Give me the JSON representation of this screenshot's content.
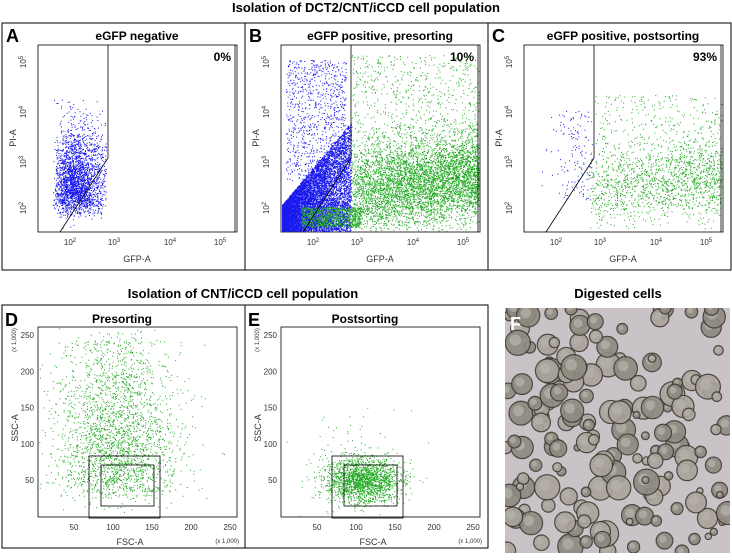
{
  "top_title": "Isolation of DCT2/CNT/iCCD cell population",
  "top_panels": [
    {
      "letter": "A",
      "title": "eGFP negative",
      "percent": "0%",
      "y_label": "PI-A",
      "x_label": "GFP-A"
    },
    {
      "letter": "B",
      "title": "eGFP positive, presorting",
      "percent": "10%",
      "y_label": "PI-A",
      "x_label": "GFP-A"
    },
    {
      "letter": "C",
      "title": "eGFP positive, postsorting",
      "percent": "93%",
      "y_label": "PI-A",
      "x_label": "GFP-A"
    }
  ],
  "log_ticks": {
    "y": [
      {
        "base": "10",
        "sup": "5"
      },
      {
        "base": "10",
        "sup": "4"
      },
      {
        "base": "10",
        "sup": "3"
      },
      {
        "base": "10",
        "sup": "2"
      }
    ],
    "x": [
      {
        "base": "10",
        "sup": "2"
      },
      {
        "base": "10",
        "sup": "3"
      },
      {
        "base": "10",
        "sup": "4"
      },
      {
        "base": "10",
        "sup": "5"
      }
    ]
  },
  "bottom_title": "Isolation of CNT/iCCD cell population",
  "bottom_panels": [
    {
      "letter": "D",
      "title": "Presorting",
      "y_label": "SSC-A",
      "x_label": "FSC-A",
      "y_scale": "(x 1,000)",
      "x_scale": "(x 1,000)"
    },
    {
      "letter": "E",
      "title": "Postsorting",
      "y_label": "SSC-A",
      "x_label": "FSC-A",
      "y_scale": "(x 1,000)",
      "x_scale": "(x 1,000)"
    }
  ],
  "linear_ticks": {
    "y": [
      "250",
      "200",
      "150",
      "100",
      "50"
    ],
    "x": [
      "50",
      "100",
      "150",
      "200",
      "250"
    ]
  },
  "image_panel": {
    "title": "Digested cells",
    "letter": "F"
  }
}
